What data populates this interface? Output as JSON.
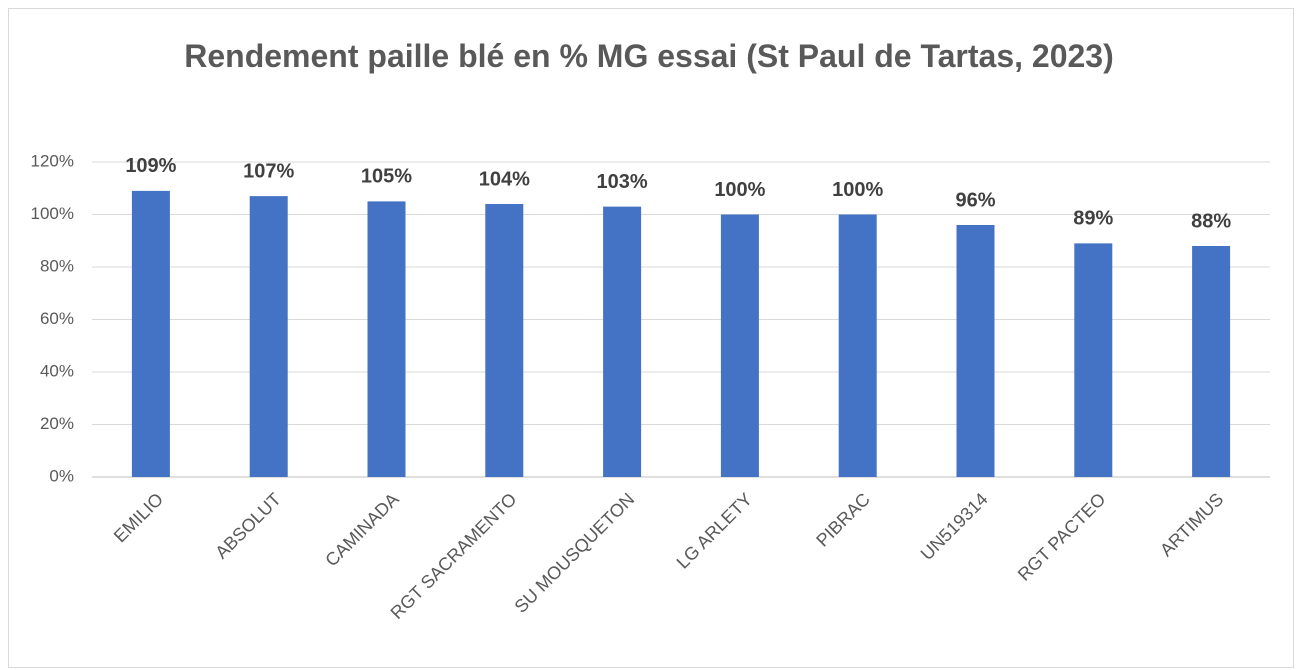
{
  "chart_data": {
    "type": "bar",
    "title": "Rendement paille blé en % MG essai (St Paul de Tartas, 2023)",
    "categories": [
      "EMILIO",
      "ABSOLUT",
      "CAMINADA",
      "RGT SACRAMENTO",
      "SU MOUSQUETON",
      "LG ARLETY",
      "PIBRAC",
      "UN519314",
      "RGT PACTEO",
      "ARTIMUS"
    ],
    "values": [
      109,
      107,
      105,
      104,
      103,
      100,
      100,
      96,
      89,
      88
    ],
    "value_labels": [
      "109%",
      "107%",
      "105%",
      "104%",
      "103%",
      "100%",
      "100%",
      "96%",
      "89%",
      "88%"
    ],
    "color": "#4472c4",
    "ylim": [
      0,
      120
    ],
    "yticks": [
      {
        "value": 0,
        "label": "0%"
      },
      {
        "value": 20,
        "label": "20%"
      },
      {
        "value": 40,
        "label": "40%"
      },
      {
        "value": 60,
        "label": "60%"
      },
      {
        "value": 80,
        "label": "80%"
      },
      {
        "value": 100,
        "label": "100%"
      },
      {
        "value": 120,
        "label": "120%"
      }
    ],
    "grid": true
  }
}
